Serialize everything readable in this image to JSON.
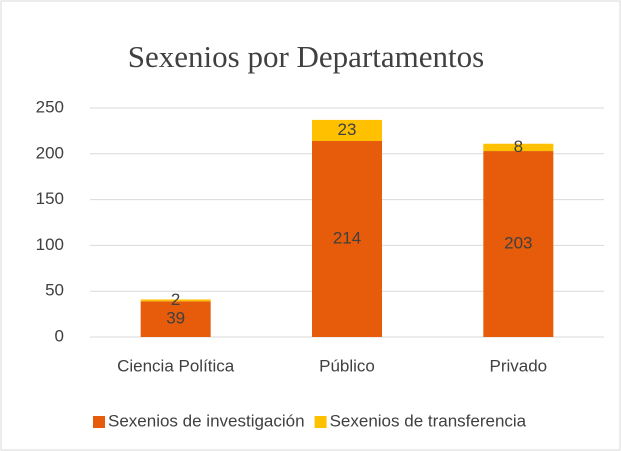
{
  "chart_data": {
    "type": "stacked_bar",
    "title": "Sexenios por Departamentos",
    "categories": [
      "Ciencia Política",
      "Público",
      "Privado"
    ],
    "series": [
      {
        "name": "Sexenios de investigación",
        "color": "#e65c0a",
        "values": [
          39,
          214,
          203
        ]
      },
      {
        "name": "Sexenios de transferencia",
        "color": "#ffc000",
        "values": [
          2,
          23,
          8
        ]
      }
    ],
    "ylim": [
      0,
      250
    ],
    "yticks": [
      0,
      50,
      100,
      150,
      200,
      250
    ],
    "grid": true,
    "legend": "bottom"
  }
}
